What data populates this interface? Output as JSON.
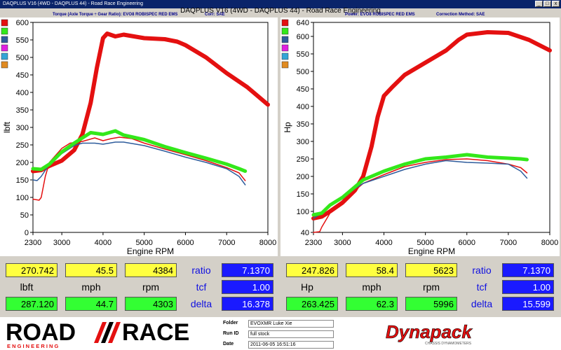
{
  "window": {
    "title": "DAQPLUS V16 (4WD - DAQPLUS 44) - Road Race Engineering"
  },
  "header": {
    "title": "DAQPLUS V16 (4WD - DAQPLUS 44) - Road Race Engineering",
    "left_sub_a": "Torque (Axle Torque ÷ Gear Ratio): EVO8 ROBISPEC RED EMS",
    "left_sub_b": "Corr: SAE",
    "right_sub_a": "Power: EVO8 ROBISPEC RED EMS",
    "right_sub_b": "Correction Method: SAE"
  },
  "colors": {
    "red": "#e41010",
    "green": "#33e81a",
    "blue": "#2e5c9c",
    "cyan": "#33a5d6",
    "dark": "#474795",
    "magenta": "#e020e0",
    "orange": "#e08a20"
  },
  "chart_data": [
    {
      "type": "line",
      "title": "",
      "xlabel": "Engine RPM",
      "ylabel": "lbft",
      "xlim": [
        2300,
        8000
      ],
      "ylim": [
        0,
        600
      ],
      "xticks": [
        2300,
        3000,
        4000,
        5000,
        6000,
        7000,
        8000
      ],
      "yticks": [
        0,
        50,
        100,
        150,
        200,
        250,
        300,
        350,
        400,
        450,
        500,
        550,
        600
      ],
      "series": [
        {
          "color": "#e41010",
          "width": 6,
          "x": [
            2300,
            2500,
            2700,
            3000,
            3300,
            3500,
            3700,
            3850,
            4000,
            4100,
            4300,
            4500,
            5000,
            5500,
            5800,
            6000,
            6500,
            7000,
            7500,
            8000
          ],
          "y": [
            175,
            178,
            190,
            205,
            235,
            280,
            370,
            470,
            555,
            568,
            560,
            565,
            555,
            552,
            545,
            535,
            500,
            455,
            415,
            365
          ]
        },
        {
          "color": "#e41010",
          "width": 1.5,
          "x": [
            2300,
            2450,
            2500,
            2600,
            2700,
            3000,
            3200,
            3500,
            3800,
            4000,
            4200,
            4400,
            4700,
            5000,
            5500,
            6000,
            6500,
            7000,
            7300,
            7450
          ],
          "y": [
            95,
            92,
            100,
            160,
            200,
            240,
            255,
            260,
            270,
            262,
            268,
            272,
            268,
            255,
            238,
            222,
            205,
            185,
            170,
            148
          ]
        },
        {
          "color": "#2e5c9c",
          "width": 1.5,
          "x": [
            2300,
            2400,
            2500,
            2700,
            3000,
            3300,
            3500,
            3800,
            4000,
            4300,
            4500,
            5000,
            5500,
            6000,
            6500,
            7000,
            7300,
            7450
          ],
          "y": [
            150,
            148,
            160,
            195,
            225,
            248,
            255,
            255,
            252,
            258,
            258,
            248,
            232,
            215,
            200,
            182,
            160,
            136
          ]
        },
        {
          "color": "#33e81a",
          "width": 5,
          "x": [
            2300,
            2500,
            2700,
            3000,
            3300,
            3500,
            3700,
            4000,
            4300,
            4500,
            5000,
            5500,
            6000,
            6500,
            7000,
            7300,
            7450
          ],
          "y": [
            182,
            180,
            195,
            230,
            255,
            270,
            285,
            280,
            290,
            278,
            265,
            245,
            228,
            212,
            195,
            182,
            175
          ]
        }
      ]
    },
    {
      "type": "line",
      "title": "",
      "xlabel": "Engine RPM",
      "ylabel": "Hp",
      "xlim": [
        2300,
        8000
      ],
      "ylim": [
        40,
        640
      ],
      "xticks": [
        2300,
        3000,
        4000,
        5000,
        6000,
        7000,
        8000
      ],
      "yticks": [
        40,
        100,
        150,
        200,
        250,
        300,
        350,
        400,
        450,
        500,
        550,
        600,
        640
      ],
      "series": [
        {
          "color": "#e41010",
          "width": 6,
          "x": [
            2300,
            2500,
            2700,
            3000,
            3300,
            3500,
            3700,
            3850,
            4000,
            4200,
            4500,
            5000,
            5500,
            5800,
            6000,
            6500,
            7000,
            7500,
            8000
          ],
          "y": [
            80,
            85,
            100,
            125,
            160,
            200,
            285,
            370,
            430,
            455,
            490,
            525,
            560,
            590,
            605,
            612,
            610,
            590,
            560
          ]
        },
        {
          "color": "#e41010",
          "width": 1.5,
          "x": [
            2300,
            2450,
            2500,
            2700,
            3000,
            3300,
            3500,
            4000,
            4500,
            5000,
            5500,
            6000,
            6500,
            7000,
            7300,
            7450
          ],
          "y": [
            40,
            42,
            55,
            95,
            130,
            160,
            180,
            205,
            228,
            240,
            248,
            250,
            245,
            235,
            225,
            210
          ]
        },
        {
          "color": "#2e5c9c",
          "width": 1.5,
          "x": [
            2300,
            2500,
            2700,
            3000,
            3300,
            3500,
            4000,
            4500,
            5000,
            5500,
            6000,
            6500,
            7000,
            7300,
            7450
          ],
          "y": [
            80,
            95,
            115,
            140,
            165,
            180,
            200,
            220,
            235,
            245,
            240,
            238,
            235,
            215,
            195
          ]
        },
        {
          "color": "#33e81a",
          "width": 5,
          "x": [
            2300,
            2500,
            2700,
            3000,
            3300,
            3500,
            4000,
            4500,
            5000,
            5500,
            6000,
            6500,
            7000,
            7300,
            7450
          ],
          "y": [
            90,
            95,
            118,
            140,
            170,
            190,
            215,
            235,
            250,
            255,
            262,
            255,
            252,
            250,
            248
          ]
        }
      ]
    }
  ],
  "legend_swatches": [
    "red",
    "green",
    "blue",
    "magenta",
    "cyan",
    "orange"
  ],
  "left_stats": {
    "row1": [
      "270.742",
      "45.5",
      "4384"
    ],
    "row2": [
      "lbft",
      "mph",
      "rpm"
    ],
    "row3": [
      "287.120",
      "44.7",
      "4303"
    ],
    "labels": [
      "ratio",
      "tcf",
      "delta"
    ],
    "values": [
      "7.1370",
      "1.00",
      "16.378"
    ]
  },
  "right_stats": {
    "row1": [
      "247.826",
      "58.4",
      "5623"
    ],
    "row2": [
      "Hp",
      "mph",
      "rpm"
    ],
    "row3": [
      "263.425",
      "62.3",
      "5996"
    ],
    "labels": [
      "ratio",
      "tcf",
      "delta"
    ],
    "values": [
      "7.1370",
      "1.00",
      "15.599"
    ]
  },
  "footer": {
    "logo_left": "ROAD",
    "logo_right": "RACE",
    "logo_tag": "E N G I N E E R I N G",
    "folder_label": "Folder",
    "folder_value": "EVOXMR Luke  Xie",
    "runid_label": "Run ID",
    "runid_value": "full stock",
    "date_label": "Date",
    "date_value": "2011-06-05  16:51:16",
    "brand": "Dynapack",
    "brand_tag": "CHASSIS DYNAMOMETERS"
  }
}
